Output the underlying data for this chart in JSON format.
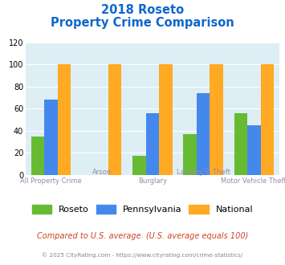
{
  "title_line1": "2018 Roseto",
  "title_line2": "Property Crime Comparison",
  "categories": [
    "All Property Crime",
    "Arson",
    "Burglary",
    "Larceny & Theft",
    "Motor Vehicle Theft"
  ],
  "roseto": [
    35,
    0,
    17,
    37,
    56
  ],
  "pennsylvania": [
    68,
    0,
    56,
    74,
    45
  ],
  "national": [
    100,
    100,
    100,
    100,
    100
  ],
  "bar_colors": {
    "roseto": "#66bb33",
    "pennsylvania": "#4488ee",
    "national": "#ffaa22"
  },
  "ylim": [
    0,
    120
  ],
  "yticks": [
    0,
    20,
    40,
    60,
    80,
    100,
    120
  ],
  "xlabel_color": "#9988aa",
  "title_color": "#1166cc",
  "background_color": "#ddeef5",
  "legend_labels": [
    "Roseto",
    "Pennsylvania",
    "National"
  ],
  "footer_text": "Compared to U.S. average. (U.S. average equals 100)",
  "copyright_text": "© 2025 CityRating.com - https://www.cityrating.com/crime-statistics/",
  "footer_color": "#cc4422",
  "copyright_color": "#888888"
}
